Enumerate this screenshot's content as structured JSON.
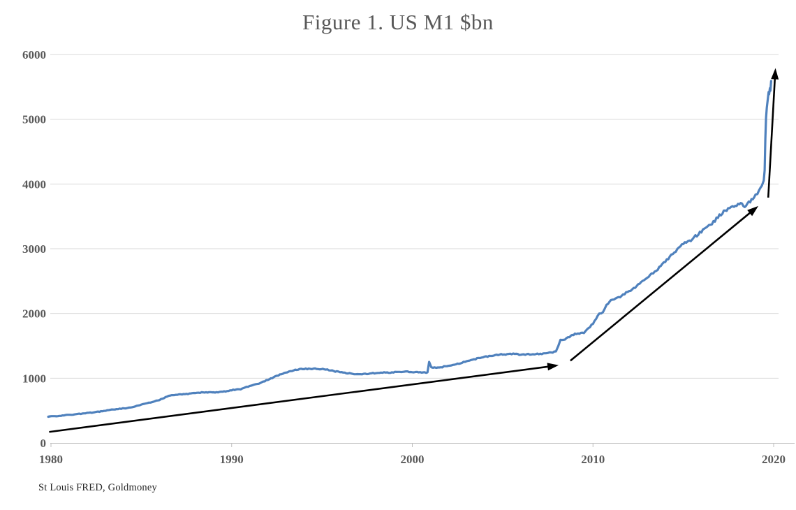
{
  "title": "Figure 1. US M1 $bn",
  "source": "St Louis FRED, Goldmoney",
  "colors": {
    "background": "#ffffff",
    "line": "#4f81bd",
    "arrow": "#000000",
    "grid": "#d9d9d9",
    "axis": "#bfbfbf",
    "tick_label": "#595959",
    "title": "#595959",
    "source": "#262626"
  },
  "chart_data": {
    "type": "line",
    "title": "Figure 1. US M1 $bn",
    "xlabel": "",
    "ylabel": "",
    "xlim": [
      1980,
      2020
    ],
    "ylim": [
      0,
      6000
    ],
    "x_ticks": [
      1980,
      1990,
      2000,
      2010,
      2020
    ],
    "y_ticks": [
      0,
      1000,
      2000,
      3000,
      4000,
      5000,
      6000
    ],
    "grid": "horizontal",
    "legend": "none",
    "series": [
      {
        "name": "US M1 ($bn)",
        "points": [
          [
            1979.85,
            408
          ],
          [
            1980.3,
            415
          ],
          [
            1980.8,
            428
          ],
          [
            1981.3,
            440
          ],
          [
            1982,
            462
          ],
          [
            1982.6,
            480
          ],
          [
            1983.2,
            508
          ],
          [
            1983.8,
            528
          ],
          [
            1984.4,
            545
          ],
          [
            1985,
            590
          ],
          [
            1985.5,
            625
          ],
          [
            1986,
            665
          ],
          [
            1986.6,
            735
          ],
          [
            1987,
            748
          ],
          [
            1987.5,
            755
          ],
          [
            1988,
            772
          ],
          [
            1988.5,
            783
          ],
          [
            1989,
            778
          ],
          [
            1989.5,
            790
          ],
          [
            1990,
            815
          ],
          [
            1990.5,
            832
          ],
          [
            1991,
            880
          ],
          [
            1991.5,
            918
          ],
          [
            1992,
            975
          ],
          [
            1992.5,
            1035
          ],
          [
            1993,
            1090
          ],
          [
            1993.6,
            1132
          ],
          [
            1994.1,
            1145
          ],
          [
            1994.7,
            1148
          ],
          [
            1995.3,
            1132
          ],
          [
            1996,
            1092
          ],
          [
            1996.7,
            1068
          ],
          [
            1997.3,
            1064
          ],
          [
            1998,
            1080
          ],
          [
            1998.7,
            1088
          ],
          [
            1999.3,
            1100
          ],
          [
            2000,
            1096
          ],
          [
            2000.6,
            1084
          ],
          [
            2000.84,
            1092
          ],
          [
            2000.93,
            1252
          ],
          [
            2001.05,
            1168
          ],
          [
            2001.5,
            1162
          ],
          [
            2002,
            1198
          ],
          [
            2002.5,
            1220
          ],
          [
            2003,
            1268
          ],
          [
            2003.5,
            1298
          ],
          [
            2004,
            1330
          ],
          [
            2004.5,
            1352
          ],
          [
            2005,
            1368
          ],
          [
            2005.5,
            1374
          ],
          [
            2006,
            1366
          ],
          [
            2006.5,
            1370
          ],
          [
            2007,
            1372
          ],
          [
            2007.5,
            1386
          ],
          [
            2007.95,
            1415
          ],
          [
            2008.08,
            1490
          ],
          [
            2008.2,
            1598
          ],
          [
            2008.45,
            1605
          ],
          [
            2008.7,
            1638
          ],
          [
            2009,
            1678
          ],
          [
            2009.5,
            1702
          ],
          [
            2010,
            1838
          ],
          [
            2010.35,
            1995
          ],
          [
            2010.55,
            2030
          ],
          [
            2010.75,
            2135
          ],
          [
            2011,
            2198
          ],
          [
            2011.5,
            2258
          ],
          [
            2012,
            2348
          ],
          [
            2012.5,
            2438
          ],
          [
            2013,
            2548
          ],
          [
            2013.5,
            2658
          ],
          [
            2014,
            2798
          ],
          [
            2014.5,
            2938
          ],
          [
            2015,
            3078
          ],
          [
            2015.5,
            3148
          ],
          [
            2016,
            3268
          ],
          [
            2016.5,
            3358
          ],
          [
            2017,
            3518
          ],
          [
            2017.4,
            3598
          ],
          [
            2017.8,
            3658
          ],
          [
            2018.1,
            3698
          ],
          [
            2018.4,
            3662
          ],
          [
            2018.7,
            3728
          ],
          [
            2019,
            3818
          ],
          [
            2019.2,
            3898
          ],
          [
            2019.35,
            3968
          ],
          [
            2019.45,
            4032
          ],
          [
            2019.5,
            4210
          ],
          [
            2019.54,
            4700
          ],
          [
            2019.58,
            5020
          ],
          [
            2019.62,
            5180
          ],
          [
            2019.67,
            5300
          ],
          [
            2019.72,
            5420
          ],
          [
            2019.75,
            5385
          ],
          [
            2019.79,
            5480
          ],
          [
            2019.82,
            5440
          ],
          [
            2019.86,
            5590
          ]
        ]
      }
    ],
    "annotations": {
      "arrows": [
        {
          "name": "trend-arrow-1980-2008",
          "from": [
            1979.9,
            170
          ],
          "to": [
            2008.1,
            1200
          ]
        },
        {
          "name": "trend-arrow-2008-2019",
          "from": [
            2008.75,
            1270
          ],
          "to": [
            2019.15,
            3660
          ]
        },
        {
          "name": "trend-arrow-2020-spike",
          "from": [
            2019.7,
            3790
          ],
          "to": [
            2020.1,
            5790
          ]
        }
      ]
    }
  }
}
